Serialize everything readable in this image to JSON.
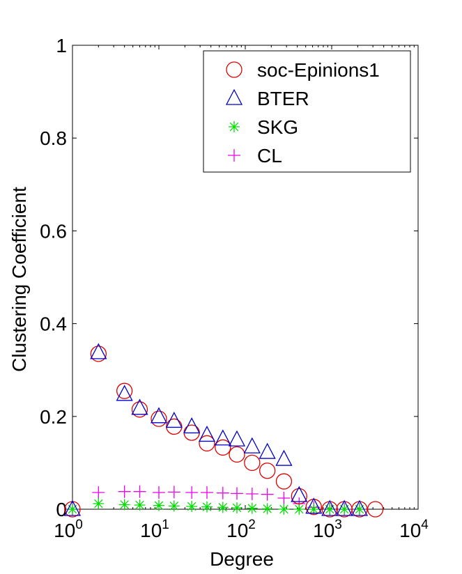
{
  "chart_data": {
    "type": "scatter",
    "title": "",
    "xlabel": "Degree",
    "ylabel": "Clustering Coefficient",
    "x_scale": "log",
    "xlim": [
      1,
      10000
    ],
    "ylim": [
      0,
      1
    ],
    "x_ticks": [
      {
        "value": 1,
        "base": "10",
        "exp": "0"
      },
      {
        "value": 10,
        "base": "10",
        "exp": "1"
      },
      {
        "value": 100,
        "base": "10",
        "exp": "2"
      },
      {
        "value": 1000,
        "base": "10",
        "exp": "3"
      },
      {
        "value": 10000,
        "base": "10",
        "exp": "4"
      }
    ],
    "y_ticks": [
      {
        "value": 0,
        "label": "0"
      },
      {
        "value": 0.2,
        "label": "0.2"
      },
      {
        "value": 0.4,
        "label": "0.4"
      },
      {
        "value": 0.6,
        "label": "0.6"
      },
      {
        "value": 0.8,
        "label": "0.8"
      },
      {
        "value": 1,
        "label": "1"
      }
    ],
    "grid": false,
    "legend_position": "top-right",
    "series": [
      {
        "name": "soc-Epinions1",
        "marker": "circle",
        "color": "#dd0000",
        "points": [
          [
            1,
            0.0
          ],
          [
            2,
            0.335
          ],
          [
            4,
            0.255
          ],
          [
            6,
            0.215
          ],
          [
            10,
            0.195
          ],
          [
            15,
            0.178
          ],
          [
            24,
            0.165
          ],
          [
            36,
            0.142
          ],
          [
            55,
            0.133
          ],
          [
            80,
            0.118
          ],
          [
            120,
            0.1
          ],
          [
            180,
            0.083
          ],
          [
            280,
            0.06
          ],
          [
            420,
            0.028
          ],
          [
            620,
            0.005
          ],
          [
            950,
            0.0
          ],
          [
            1400,
            0.0
          ],
          [
            2100,
            0.0
          ],
          [
            3200,
            0.0
          ]
        ]
      },
      {
        "name": "BTER",
        "marker": "triangle",
        "color": "#0000cc",
        "points": [
          [
            1,
            0.0
          ],
          [
            2,
            0.338
          ],
          [
            4,
            0.248
          ],
          [
            6,
            0.218
          ],
          [
            10,
            0.2
          ],
          [
            15,
            0.19
          ],
          [
            24,
            0.178
          ],
          [
            36,
            0.16
          ],
          [
            55,
            0.152
          ],
          [
            80,
            0.15
          ],
          [
            120,
            0.135
          ],
          [
            180,
            0.123
          ],
          [
            280,
            0.108
          ],
          [
            420,
            0.03
          ],
          [
            620,
            0.005
          ],
          [
            950,
            0.0
          ],
          [
            1400,
            0.0
          ],
          [
            2100,
            0.0
          ]
        ]
      },
      {
        "name": "SKG",
        "marker": "asterisk",
        "color": "#00dd00",
        "points": [
          [
            1,
            0.0
          ],
          [
            2,
            0.012
          ],
          [
            4,
            0.01
          ],
          [
            6,
            0.009
          ],
          [
            10,
            0.008
          ],
          [
            15,
            0.007
          ],
          [
            24,
            0.006
          ],
          [
            36,
            0.005
          ],
          [
            55,
            0.004
          ],
          [
            80,
            0.003
          ],
          [
            120,
            0.002
          ],
          [
            180,
            0.001
          ],
          [
            280,
            0.0
          ],
          [
            420,
            0.0
          ],
          [
            620,
            0.0
          ],
          [
            950,
            0.0
          ],
          [
            1400,
            0.0
          ],
          [
            2100,
            0.0
          ]
        ]
      },
      {
        "name": "CL",
        "marker": "plus",
        "color": "#ee00ee",
        "points": [
          [
            1,
            0.0
          ],
          [
            2,
            0.036
          ],
          [
            4,
            0.038
          ],
          [
            6,
            0.038
          ],
          [
            10,
            0.036
          ],
          [
            15,
            0.037
          ],
          [
            24,
            0.036
          ],
          [
            36,
            0.036
          ],
          [
            55,
            0.035
          ],
          [
            80,
            0.034
          ],
          [
            120,
            0.033
          ],
          [
            180,
            0.032
          ],
          [
            280,
            0.024
          ],
          [
            420,
            0.012
          ],
          [
            620,
            0.004
          ],
          [
            950,
            0.0
          ],
          [
            1400,
            0.0
          ],
          [
            2100,
            0.0
          ]
        ]
      }
    ]
  }
}
